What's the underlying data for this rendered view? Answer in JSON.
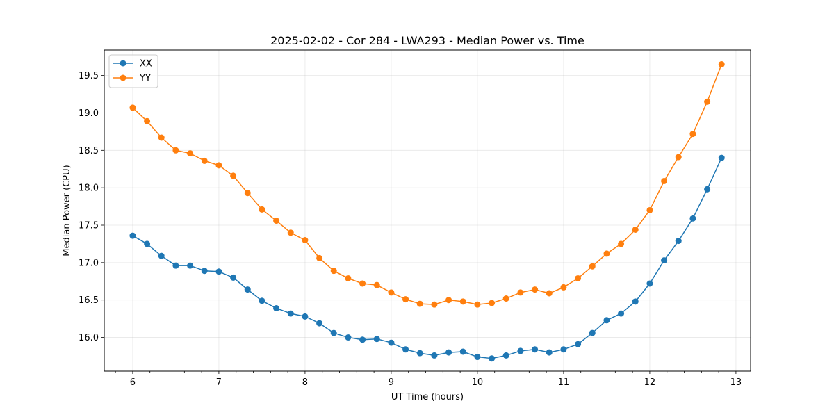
{
  "chart_data": {
    "type": "line",
    "title": "2025-02-02 - Cor 284 - LWA293 - Median Power vs. Time",
    "xlabel": "UT Time (hours)",
    "ylabel": "Median Power (CPU)",
    "xlim": [
      5.67,
      13.17
    ],
    "ylim": [
      15.55,
      19.84
    ],
    "xticks": [
      6,
      7,
      8,
      9,
      10,
      11,
      12,
      13
    ],
    "xtick_labels": [
      "6",
      "7",
      "8",
      "9",
      "10",
      "11",
      "12",
      "13"
    ],
    "xminor_step": 0.2,
    "yticks": [
      16.0,
      16.5,
      17.0,
      17.5,
      18.0,
      18.5,
      19.0,
      19.5
    ],
    "ytick_labels": [
      "16.0",
      "16.5",
      "17.0",
      "17.5",
      "18.0",
      "18.5",
      "19.0",
      "19.5"
    ],
    "grid": true,
    "legend_position": "top-left",
    "x": [
      6.0,
      6.1667,
      6.3333,
      6.5,
      6.6667,
      6.8333,
      7.0,
      7.1667,
      7.3333,
      7.5,
      7.6667,
      7.8333,
      8.0,
      8.1667,
      8.3333,
      8.5,
      8.6667,
      8.8333,
      9.0,
      9.1667,
      9.3333,
      9.5,
      9.6667,
      9.8333,
      10.0,
      10.1667,
      10.3333,
      10.5,
      10.6667,
      10.8333,
      11.0,
      11.1667,
      11.3333,
      11.5,
      11.6667,
      11.8333,
      12.0,
      12.1667,
      12.3333,
      12.5,
      12.6667,
      12.8333
    ],
    "series": [
      {
        "name": "XX",
        "color": "#1f77b4",
        "values": [
          17.36,
          17.25,
          17.09,
          16.96,
          16.96,
          16.89,
          16.88,
          16.8,
          16.64,
          16.49,
          16.39,
          16.32,
          16.28,
          16.19,
          16.06,
          16.0,
          15.97,
          15.98,
          15.93,
          15.84,
          15.79,
          15.76,
          15.8,
          15.81,
          15.74,
          15.72,
          15.76,
          15.82,
          15.84,
          15.8,
          15.84,
          15.91,
          16.06,
          16.23,
          16.32,
          16.48,
          16.72,
          17.03,
          17.29,
          17.59,
          17.98,
          18.4
        ]
      },
      {
        "name": "YY",
        "color": "#ff7f0e",
        "values": [
          19.07,
          18.89,
          18.67,
          18.5,
          18.46,
          18.36,
          18.3,
          18.16,
          17.93,
          17.71,
          17.56,
          17.4,
          17.3,
          17.06,
          16.89,
          16.79,
          16.72,
          16.7,
          16.6,
          16.51,
          16.45,
          16.44,
          16.5,
          16.48,
          16.44,
          16.46,
          16.52,
          16.6,
          16.64,
          16.59,
          16.67,
          16.79,
          16.95,
          17.12,
          17.25,
          17.44,
          17.7,
          18.09,
          18.41,
          18.72,
          19.15,
          19.65
        ]
      }
    ]
  }
}
